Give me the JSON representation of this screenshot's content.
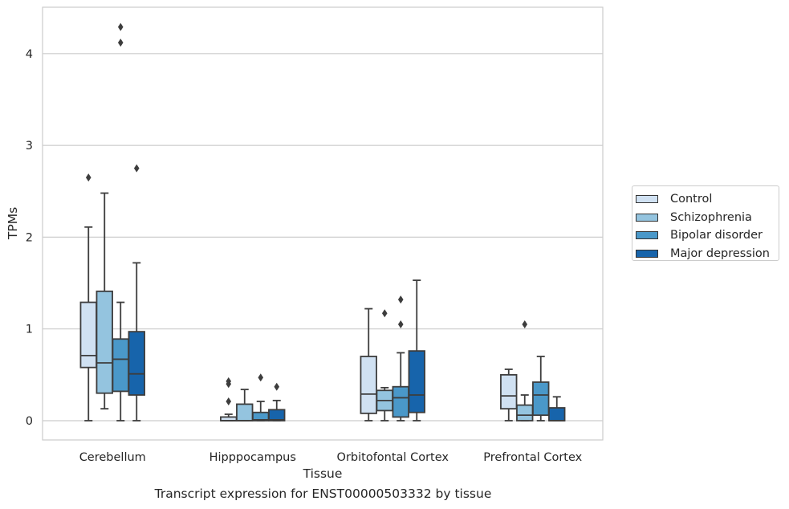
{
  "chart_data": {
    "type": "box",
    "title": "",
    "xlabel": "Tissue",
    "ylabel": "TPMs",
    "caption": "Transcript expression for ENST00000503332 by tissue",
    "ylim": [
      -0.2,
      4.5
    ],
    "yticks": [
      "0",
      "1",
      "2",
      "3",
      "4"
    ],
    "ytick_values": [
      0,
      1,
      2,
      3,
      4
    ],
    "grid": "horizontal",
    "legend_position": "right",
    "categories": [
      "Cerebellum",
      "Hipppocampus",
      "Orbitofontal Cortex",
      "Prefrontal Cortex"
    ],
    "series": [
      {
        "name": "Control",
        "color": "#d0e1f2",
        "boxes": [
          {
            "whisker_low": 0,
            "q1": 0.58,
            "median": 0.71,
            "q3": 1.29,
            "whisker_high": 2.11,
            "outliers": [
              2.65
            ]
          },
          {
            "whisker_low": 0,
            "q1": 0,
            "median": 0,
            "q3": 0.04,
            "whisker_high": 0.07,
            "outliers": [
              0.21,
              0.4,
              0.43
            ]
          },
          {
            "whisker_low": 0,
            "q1": 0.08,
            "median": 0.29,
            "q3": 0.7,
            "whisker_high": 1.22,
            "outliers": []
          },
          {
            "whisker_low": 0,
            "q1": 0.13,
            "median": 0.27,
            "q3": 0.5,
            "whisker_high": 0.56,
            "outliers": []
          }
        ]
      },
      {
        "name": "Schizophrenia",
        "color": "#94c4df",
        "boxes": [
          {
            "whisker_low": 0.13,
            "q1": 0.3,
            "median": 0.63,
            "q3": 1.41,
            "whisker_high": 2.48,
            "outliers": []
          },
          {
            "whisker_low": 0,
            "q1": 0,
            "median": 0,
            "q3": 0.18,
            "whisker_high": 0.34,
            "outliers": []
          },
          {
            "whisker_low": 0,
            "q1": 0.11,
            "median": 0.22,
            "q3": 0.33,
            "whisker_high": 0.36,
            "outliers": [
              1.17
            ]
          },
          {
            "whisker_low": 0,
            "q1": 0,
            "median": 0.06,
            "q3": 0.17,
            "whisker_high": 0.28,
            "outliers": [
              1.05
            ]
          }
        ]
      },
      {
        "name": "Bipolar disorder",
        "color": "#4a98c9",
        "boxes": [
          {
            "whisker_low": 0,
            "q1": 0.32,
            "median": 0.67,
            "q3": 0.89,
            "whisker_high": 1.29,
            "outliers": [
              4.12,
              4.29
            ]
          },
          {
            "whisker_low": 0,
            "q1": 0,
            "median": 0.01,
            "q3": 0.09,
            "whisker_high": 0.21,
            "outliers": [
              0.47
            ]
          },
          {
            "whisker_low": 0,
            "q1": 0.04,
            "median": 0.25,
            "q3": 0.37,
            "whisker_high": 0.74,
            "outliers": [
              1.05,
              1.32
            ]
          },
          {
            "whisker_low": 0,
            "q1": 0.06,
            "median": 0.28,
            "q3": 0.42,
            "whisker_high": 0.7,
            "outliers": []
          }
        ]
      },
      {
        "name": "Major depression",
        "color": "#1764ab",
        "boxes": [
          {
            "whisker_low": 0,
            "q1": 0.28,
            "median": 0.51,
            "q3": 0.97,
            "whisker_high": 1.72,
            "outliers": [
              2.75
            ]
          },
          {
            "whisker_low": 0,
            "q1": 0,
            "median": 0.01,
            "q3": 0.12,
            "whisker_high": 0.22,
            "outliers": [
              0.37
            ]
          },
          {
            "whisker_low": 0,
            "q1": 0.09,
            "median": 0.28,
            "q3": 0.76,
            "whisker_high": 1.53,
            "outliers": []
          },
          {
            "whisker_low": 0,
            "q1": 0,
            "median": 0,
            "q3": 0.14,
            "whisker_high": 0.26,
            "outliers": []
          }
        ]
      }
    ]
  }
}
